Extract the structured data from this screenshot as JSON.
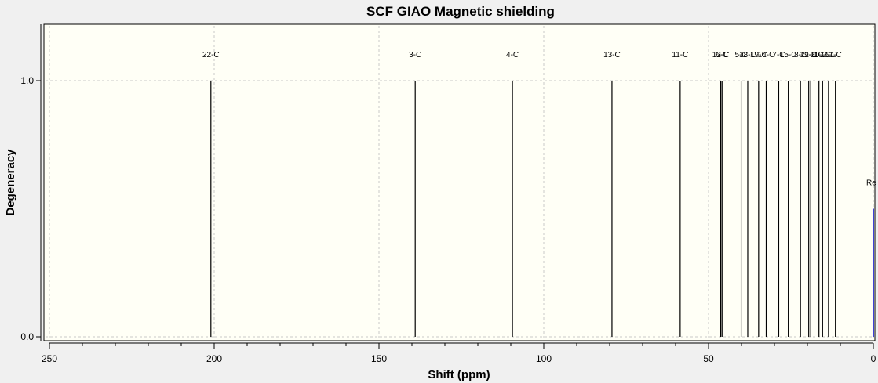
{
  "chart_data": {
    "type": "bar",
    "title": "SCF GIAO Magnetic shielding",
    "xlabel": "Shift (ppm)",
    "ylabel": "Degeneracy",
    "xlim": [
      250,
      0
    ],
    "x_reversed": true,
    "ylim": [
      0,
      1.2
    ],
    "x_ticks": [
      250,
      200,
      150,
      100,
      50,
      0
    ],
    "y_ticks": [
      0.0,
      1.0
    ],
    "y_tick_labels": [
      "0.0",
      "1.0"
    ],
    "grid": true,
    "colors": {
      "plot_bg": "#fffff6",
      "page_bg": "#f0f0f0",
      "peak": "#000000",
      "reference": "#0000cc",
      "grid": "#c8c8c8"
    },
    "peaks": [
      {
        "label": "22-C",
        "x": 201.0,
        "y": 1.0
      },
      {
        "label": "3-C",
        "x": 139.0,
        "y": 1.0
      },
      {
        "label": "4-C",
        "x": 109.5,
        "y": 1.0
      },
      {
        "label": "13-C",
        "x": 79.3,
        "y": 1.0
      },
      {
        "label": "11-C",
        "x": 58.6,
        "y": 1.0
      },
      {
        "label": "12-C",
        "x": 46.3,
        "y": 1.0
      },
      {
        "label": "6-C",
        "x": 45.9,
        "y": 1.0
      },
      {
        "label": "5-C",
        "x": 40.1,
        "y": 1.0
      },
      {
        "label": "18-C",
        "x": 38.1,
        "y": 1.0
      },
      {
        "label": "19-C",
        "x": 34.8,
        "y": 1.0
      },
      {
        "label": "14-C",
        "x": 32.5,
        "y": 1.0
      },
      {
        "label": "7-C",
        "x": 28.7,
        "y": 1.0
      },
      {
        "label": "15-C",
        "x": 25.8,
        "y": 1.0
      },
      {
        "label": "8-C",
        "x": 22.1,
        "y": 1.0
      },
      {
        "label": "21-C",
        "x": 19.6,
        "y": 1.0
      },
      {
        "label": "9-C",
        "x": 19.0,
        "y": 1.0
      },
      {
        "label": "20-C",
        "x": 16.5,
        "y": 1.0
      },
      {
        "label": "10-C",
        "x": 15.4,
        "y": 1.0
      },
      {
        "label": "16-C",
        "x": 13.6,
        "y": 1.0
      },
      {
        "label": "1-C",
        "x": 11.5,
        "y": 1.0
      }
    ],
    "reference": {
      "label": "Re",
      "x": 0.0,
      "y": 0.5
    }
  }
}
